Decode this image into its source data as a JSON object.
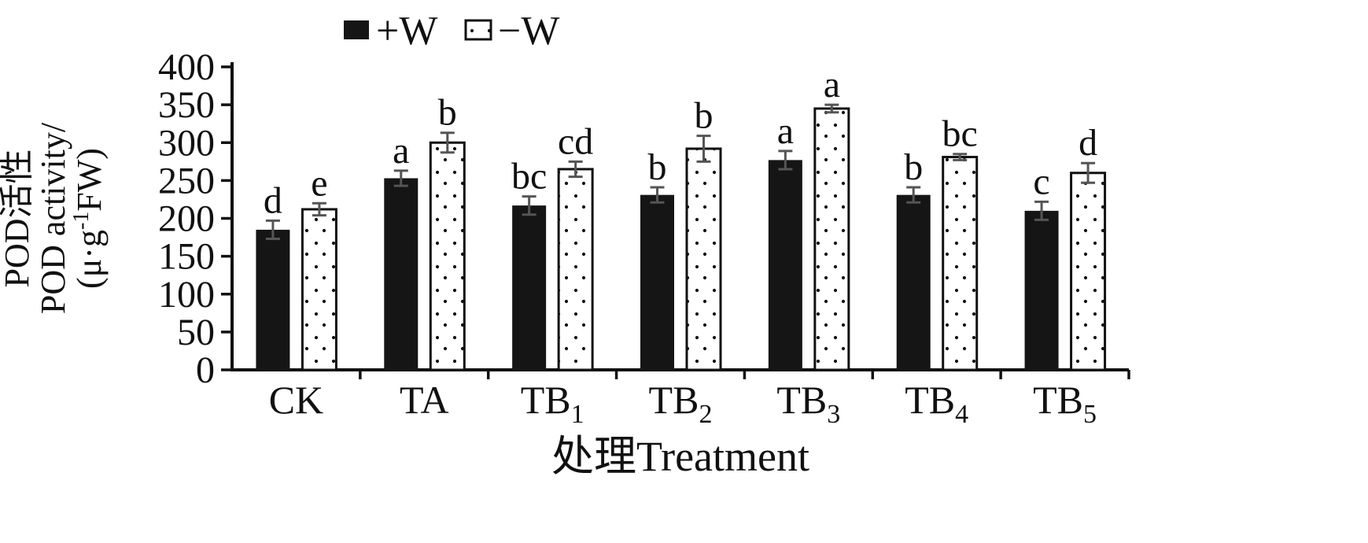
{
  "chart_data": {
    "type": "bar",
    "title": "",
    "xlabel": "处理Treatment",
    "ylabel_lines": [
      {
        "text": "POD活性"
      },
      {
        "text": "POD activity/"
      },
      {
        "parts": [
          {
            "t": "(μ·g",
            "sup": false
          },
          {
            "t": "-1",
            "sup": true
          },
          {
            "t": "FW)",
            "sup": false
          }
        ]
      }
    ],
    "ylim": [
      0,
      400
    ],
    "yticks": [
      0,
      50,
      100,
      150,
      200,
      250,
      300,
      350,
      400
    ],
    "grid": false,
    "legend_position": "top",
    "categories": [
      {
        "key": "ck",
        "label": "CK",
        "sub": ""
      },
      {
        "key": "ta",
        "label": "TA",
        "sub": ""
      },
      {
        "key": "tb1",
        "label": "TB",
        "sub": "1"
      },
      {
        "key": "tb2",
        "label": "TB",
        "sub": "2"
      },
      {
        "key": "tb3",
        "label": "TB",
        "sub": "3"
      },
      {
        "key": "tb4",
        "label": "TB",
        "sub": "4"
      },
      {
        "key": "tb5",
        "label": "TB",
        "sub": "5"
      }
    ],
    "series": [
      {
        "key": "plus-w",
        "name": "+W",
        "style": "solid-black",
        "values": [
          185,
          253,
          217,
          231,
          277,
          231,
          210
        ],
        "errors": [
          12,
          10,
          12,
          10,
          12,
          10,
          12
        ],
        "letters": [
          "d",
          "a",
          "bc",
          "b",
          "a",
          "b",
          "c"
        ]
      },
      {
        "key": "minus-w",
        "name": "−W",
        "style": "dotted-white",
        "values": [
          212,
          300,
          265,
          292,
          345,
          281,
          260
        ],
        "errors": [
          8,
          13,
          10,
          17,
          5,
          4,
          13
        ],
        "letters": [
          "e",
          "b",
          "cd",
          "b",
          "a",
          "bc",
          "d"
        ]
      }
    ]
  },
  "colors": {
    "bar_black": "#151515",
    "bar_white": "#ffffff",
    "bar_outline": "#111111",
    "axis": "#111111",
    "error_bar": "#555555",
    "text": "#111111",
    "background": "#ffffff"
  }
}
